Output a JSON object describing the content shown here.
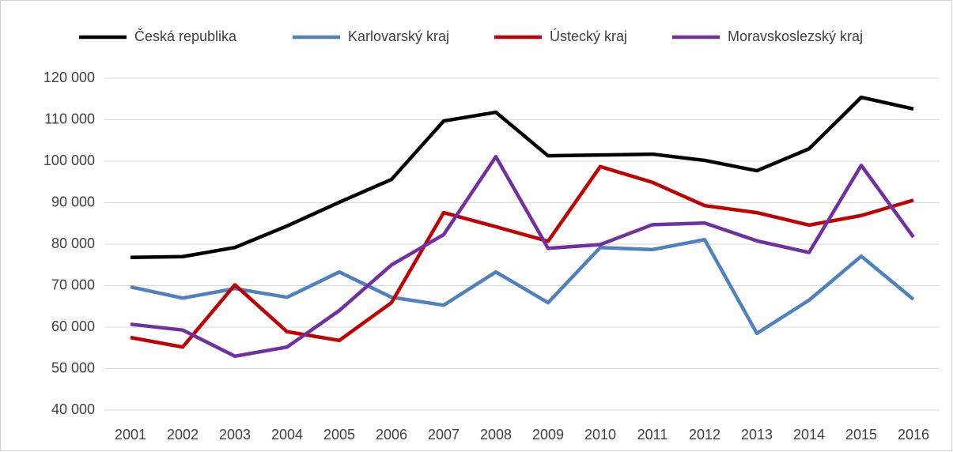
{
  "chart_data": {
    "type": "line",
    "categories": [
      "2001",
      "2002",
      "2003",
      "2004",
      "2005",
      "2006",
      "2007",
      "2008",
      "2009",
      "2010",
      "2011",
      "2012",
      "2013",
      "2014",
      "2015",
      "2016"
    ],
    "series": [
      {
        "name": "Česká republika",
        "color": "#000000",
        "values": [
          76800,
          77000,
          79200,
          84400,
          90100,
          95600,
          109700,
          111800,
          101300,
          101500,
          101700,
          100200,
          97700,
          103000,
          115400,
          112600
        ]
      },
      {
        "name": "Karlovarský kraj",
        "color": "#4f81bd",
        "values": [
          69700,
          67000,
          69300,
          67200,
          73300,
          67200,
          65300,
          73300,
          65900,
          79200,
          78700,
          81100,
          58500,
          66500,
          77100,
          66700
        ]
      },
      {
        "name": "Ústecký kraj",
        "color": "#c00000",
        "values": [
          57500,
          55200,
          70200,
          58900,
          56800,
          65900,
          87600,
          84200,
          80700,
          98700,
          94900,
          89300,
          87600,
          84600,
          86900,
          90600
        ]
      },
      {
        "name": "Moravskoslezský kraj",
        "color": "#7030a0",
        "values": [
          60700,
          59300,
          53000,
          55200,
          64000,
          75000,
          82300,
          101100,
          79000,
          79900,
          84700,
          85100,
          80800,
          78000,
          99000,
          81700
        ]
      }
    ],
    "ylim": [
      40000,
      120000
    ],
    "yticks": [
      {
        "value": 40000,
        "label": "40 000"
      },
      {
        "value": 50000,
        "label": "50 000"
      },
      {
        "value": 60000,
        "label": "60 000"
      },
      {
        "value": 70000,
        "label": "70 000"
      },
      {
        "value": 80000,
        "label": "80 000"
      },
      {
        "value": 90000,
        "label": "90 000"
      },
      {
        "value": 100000,
        "label": "100 000"
      },
      {
        "value": 110000,
        "label": "110 000"
      },
      {
        "value": 120000,
        "label": "120 000"
      }
    ],
    "grid": true,
    "legend": "top"
  }
}
